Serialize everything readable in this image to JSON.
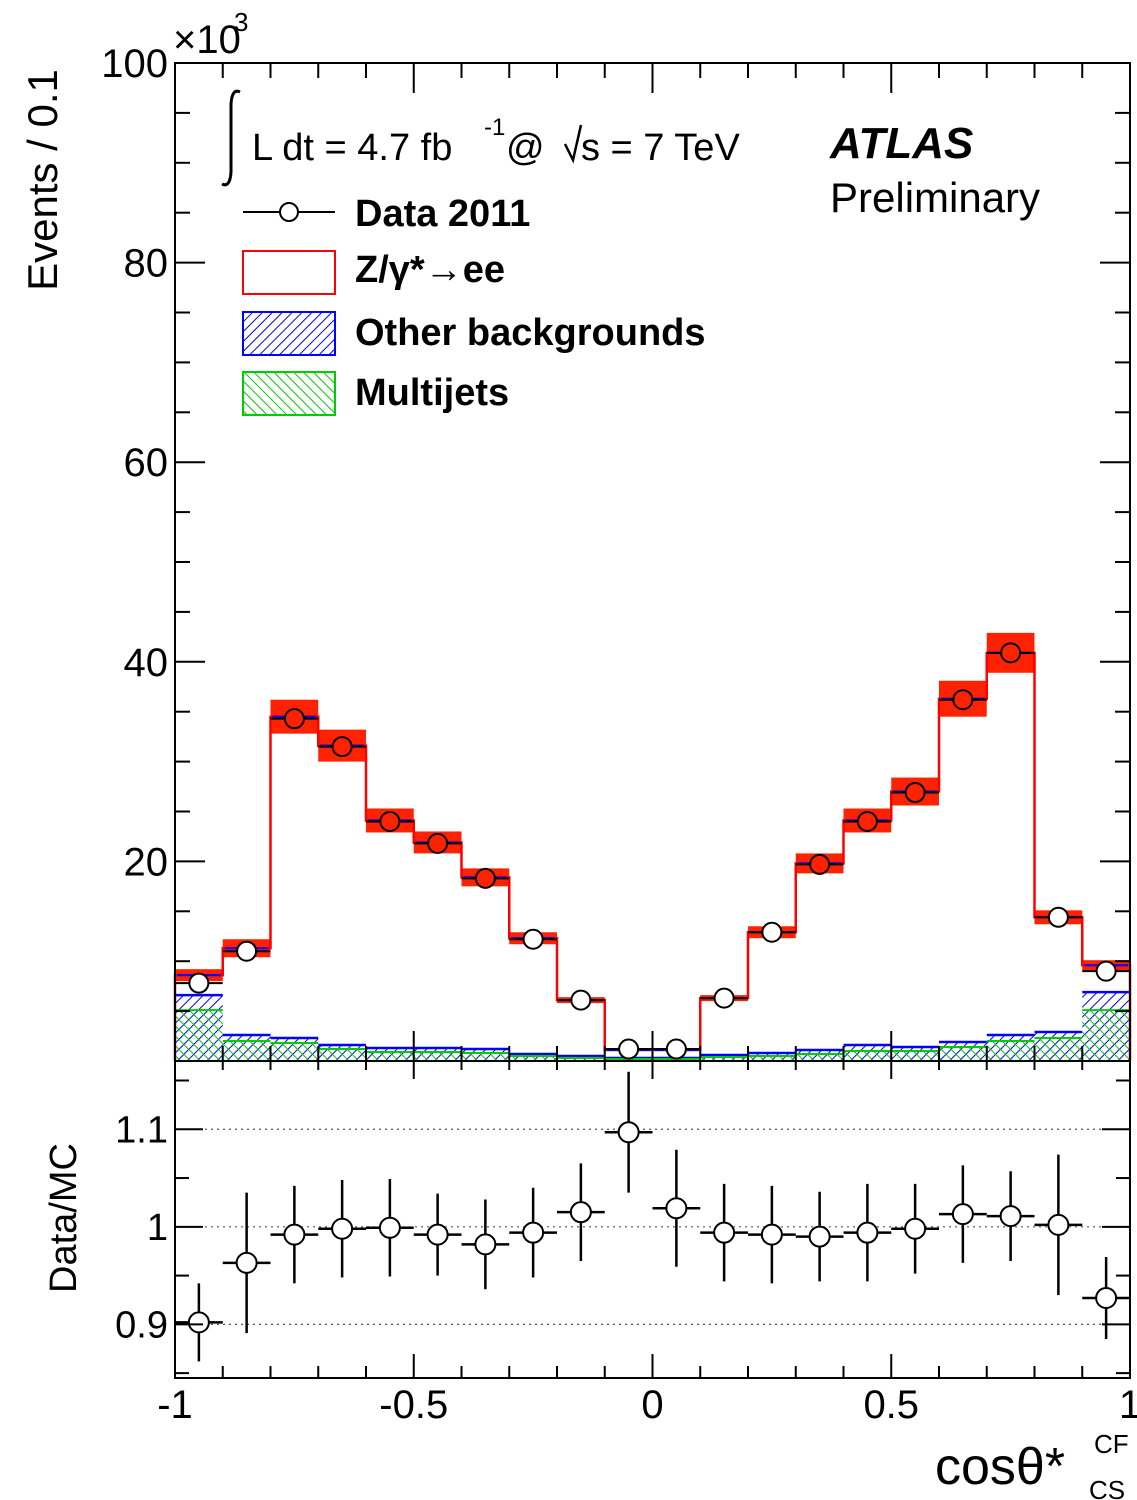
{
  "chart_data": {
    "type": "histogram",
    "bins": [
      -1.0,
      -0.9,
      -0.8,
      -0.7,
      -0.6,
      -0.5,
      -0.4,
      -0.3,
      -0.2,
      -0.1,
      0.0,
      0.1,
      0.2,
      0.3,
      0.4,
      0.5,
      0.6,
      0.7,
      0.8,
      0.9,
      1.0
    ],
    "x": [
      -0.95,
      -0.85,
      -0.75,
      -0.65,
      -0.55,
      -0.45,
      -0.35,
      -0.25,
      -0.15,
      -0.05,
      0.05,
      0.15,
      0.25,
      0.35,
      0.45,
      0.55,
      0.65,
      0.75,
      0.85,
      0.95
    ],
    "xlabel": "cosθ*",
    "xlabel_sup": "CF",
    "xlabel_sub": "CS",
    "xlim": [
      -1,
      1
    ],
    "x_ticks": [
      -1,
      -0.5,
      0,
      0.5,
      1
    ],
    "x_tick_labels": [
      "-1",
      "-0.5",
      "0",
      "0.5",
      "1"
    ],
    "main_panel": {
      "ylabel": "Events / 0.1",
      "y_multiplier": "×10",
      "y_multiplier_exp": "3",
      "ylim": [
        0,
        100
      ],
      "y_ticks": [
        20,
        40,
        60,
        80,
        100
      ],
      "y_tick_labels": [
        "20",
        "40",
        "60",
        "80",
        "100"
      ],
      "series": [
        {
          "name": "Data 2011",
          "style": "points",
          "color": "#000000",
          "values": [
            7.8,
            11.0,
            34.3,
            31.5,
            24.0,
            21.8,
            18.3,
            12.2,
            6.1,
            1.2,
            1.2,
            6.3,
            12.9,
            19.7,
            24.0,
            26.9,
            36.2,
            40.9,
            14.4,
            9.0
          ]
        },
        {
          "name": "Z/γ*→ee",
          "style": "step",
          "color": "#ff0000",
          "band_color": "#ff2200",
          "values": [
            8.6,
            11.3,
            34.5,
            31.6,
            24.1,
            21.9,
            18.4,
            12.3,
            6.1,
            1.1,
            1.1,
            6.3,
            12.9,
            19.8,
            24.1,
            27.0,
            36.3,
            40.9,
            14.4,
            9.6
          ],
          "band_halfwidth": [
            0.6,
            0.9,
            1.7,
            1.6,
            1.2,
            1.1,
            0.9,
            0.6,
            0.3,
            0.1,
            0.1,
            0.3,
            0.6,
            1.0,
            1.2,
            1.4,
            1.8,
            2.0,
            0.7,
            0.5
          ]
        },
        {
          "name": "Other backgrounds",
          "style": "hatched",
          "color": "#0000ff",
          "values": [
            6.6,
            2.6,
            2.3,
            1.6,
            1.3,
            1.3,
            1.2,
            0.7,
            0.5,
            0.3,
            0.3,
            0.6,
            0.8,
            1.1,
            1.6,
            1.4,
            1.9,
            2.6,
            2.9,
            6.9
          ]
        },
        {
          "name": "Multijets",
          "style": "hatched",
          "color": "#00cc00",
          "values": [
            5.1,
            2.0,
            1.8,
            1.2,
            0.9,
            0.9,
            0.8,
            0.5,
            0.3,
            0.2,
            0.2,
            0.4,
            0.5,
            0.7,
            1.0,
            1.0,
            1.4,
            2.0,
            2.3,
            5.1
          ]
        }
      ]
    },
    "ratio_panel": {
      "ylabel": "Data/MC",
      "ylim": [
        0.845,
        1.17
      ],
      "y_ticks": [
        0.9,
        1.0,
        1.1
      ],
      "y_tick_labels": [
        "0.9",
        "1",
        "1.1"
      ],
      "grid": [
        0.9,
        1.0,
        1.1
      ],
      "values": [
        0.902,
        0.963,
        0.992,
        0.998,
        0.999,
        0.992,
        0.982,
        0.994,
        1.015,
        1.097,
        1.019,
        0.994,
        0.992,
        0.99,
        0.994,
        0.998,
        1.013,
        1.011,
        1.002,
        0.927
      ],
      "err": [
        0.04,
        0.072,
        0.05,
        0.05,
        0.05,
        0.042,
        0.046,
        0.046,
        0.05,
        0.062,
        0.06,
        0.05,
        0.05,
        0.046,
        0.05,
        0.046,
        0.05,
        0.046,
        0.072,
        0.042
      ]
    },
    "annotations": {
      "lumi": "L dt = 4.7 fb",
      "lumi_exp": "-1",
      "lumi_at": "@",
      "sqrt_s": "s = 7 TeV",
      "experiment": "ATLAS",
      "status": "Preliminary"
    },
    "legend": [
      "Data 2011",
      "Z/γ*→ee",
      "Other backgrounds",
      "Multijets"
    ],
    "legend_position": "top-left",
    "colors": {
      "data": "#000000",
      "signal": "#ff0000",
      "signal_band": "#ff2200",
      "other": "#0000ff",
      "multijet": "#00cc00"
    }
  }
}
